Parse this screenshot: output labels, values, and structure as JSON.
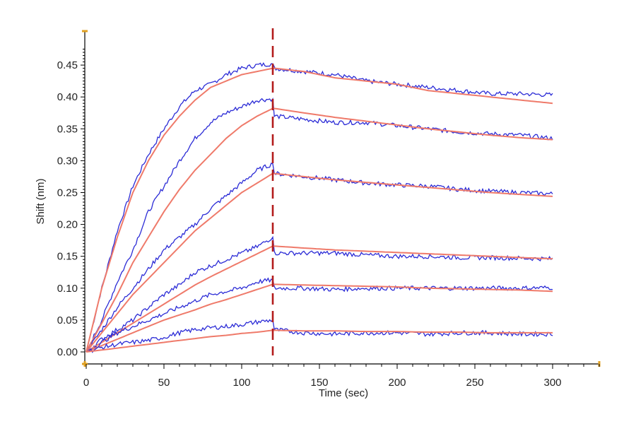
{
  "chart_data": {
    "type": "line",
    "title": "",
    "xlabel": "Time (sec)",
    "ylabel": "Shift (nm)",
    "xlim": [
      0,
      330
    ],
    "ylim": [
      0.0,
      0.48
    ],
    "x_ticks": [
      0,
      50,
      100,
      150,
      200,
      250,
      300
    ],
    "y_ticks": [
      0.0,
      0.05,
      0.1,
      0.15,
      0.2,
      0.25,
      0.3,
      0.35,
      0.4,
      0.45
    ],
    "dissociation_start": 120,
    "grid": false,
    "legend": "none",
    "colors": {
      "measured": "#2b2bd6",
      "fit": "#ef7a6a",
      "marker": "#b31b1b",
      "axis_end": "#e0a020"
    },
    "series": [
      {
        "x": [
          0,
          10,
          20,
          30,
          40,
          50,
          60,
          70,
          80,
          90,
          100,
          110,
          120,
          121,
          140,
          160,
          180,
          200,
          220,
          240,
          260,
          280,
          300
        ],
        "measured": [
          0.0,
          0.1,
          0.19,
          0.26,
          0.31,
          0.35,
          0.385,
          0.41,
          0.42,
          0.435,
          0.445,
          0.45,
          0.452,
          0.445,
          0.44,
          0.435,
          0.425,
          0.42,
          0.415,
          0.41,
          0.405,
          0.405,
          0.403
        ],
        "fit": [
          0.0,
          0.1,
          0.18,
          0.25,
          0.3,
          0.34,
          0.37,
          0.395,
          0.415,
          0.425,
          0.435,
          0.44,
          0.445,
          0.445,
          0.44,
          0.43,
          0.425,
          0.42,
          0.41,
          0.405,
          0.4,
          0.395,
          0.39
        ]
      },
      {
        "x": [
          0,
          10,
          20,
          30,
          40,
          50,
          60,
          70,
          80,
          90,
          100,
          110,
          120,
          121,
          140,
          160,
          180,
          200,
          220,
          240,
          260,
          280,
          300
        ],
        "measured": [
          0.0,
          0.05,
          0.11,
          0.16,
          0.22,
          0.26,
          0.3,
          0.335,
          0.36,
          0.375,
          0.385,
          0.395,
          0.397,
          0.37,
          0.365,
          0.36,
          0.36,
          0.355,
          0.35,
          0.345,
          0.342,
          0.34,
          0.335
        ],
        "fit": [
          0.0,
          0.045,
          0.09,
          0.14,
          0.18,
          0.22,
          0.255,
          0.285,
          0.31,
          0.335,
          0.355,
          0.37,
          0.382,
          0.382,
          0.375,
          0.368,
          0.362,
          0.356,
          0.35,
          0.345,
          0.34,
          0.336,
          0.333
        ]
      },
      {
        "x": [
          0,
          10,
          20,
          30,
          40,
          50,
          60,
          70,
          80,
          90,
          100,
          110,
          120,
          121,
          140,
          160,
          180,
          200,
          220,
          240,
          260,
          280,
          300
        ],
        "measured": [
          0.0,
          0.035,
          0.07,
          0.1,
          0.13,
          0.16,
          0.18,
          0.2,
          0.225,
          0.245,
          0.265,
          0.285,
          0.295,
          0.28,
          0.275,
          0.27,
          0.265,
          0.262,
          0.26,
          0.255,
          0.252,
          0.25,
          0.248
        ],
        "fit": [
          0.0,
          0.03,
          0.06,
          0.09,
          0.115,
          0.14,
          0.165,
          0.19,
          0.21,
          0.23,
          0.25,
          0.265,
          0.28,
          0.28,
          0.275,
          0.27,
          0.266,
          0.262,
          0.258,
          0.254,
          0.25,
          0.247,
          0.244
        ]
      },
      {
        "x": [
          0,
          10,
          20,
          30,
          40,
          50,
          60,
          70,
          80,
          90,
          100,
          110,
          120,
          121,
          140,
          160,
          180,
          200,
          220,
          240,
          260,
          280,
          300
        ],
        "measured": [
          0.0,
          0.02,
          0.035,
          0.05,
          0.07,
          0.09,
          0.105,
          0.125,
          0.135,
          0.145,
          0.155,
          0.165,
          0.18,
          0.155,
          0.155,
          0.155,
          0.152,
          0.15,
          0.15,
          0.148,
          0.148,
          0.147,
          0.146
        ],
        "fit": [
          0.0,
          0.015,
          0.03,
          0.045,
          0.06,
          0.075,
          0.09,
          0.105,
          0.118,
          0.13,
          0.142,
          0.154,
          0.166,
          0.166,
          0.163,
          0.16,
          0.158,
          0.156,
          0.154,
          0.152,
          0.15,
          0.148,
          0.146
        ]
      },
      {
        "x": [
          0,
          10,
          20,
          30,
          40,
          50,
          60,
          70,
          80,
          90,
          100,
          110,
          120,
          121,
          140,
          160,
          180,
          200,
          220,
          240,
          260,
          280,
          300
        ],
        "measured": [
          0.0,
          0.015,
          0.03,
          0.04,
          0.05,
          0.06,
          0.07,
          0.08,
          0.09,
          0.095,
          0.1,
          0.11,
          0.113,
          0.1,
          0.1,
          0.098,
          0.1,
          0.1,
          0.1,
          0.1,
          0.1,
          0.1,
          0.101
        ],
        "fit": [
          0.0,
          0.01,
          0.02,
          0.03,
          0.04,
          0.05,
          0.058,
          0.066,
          0.075,
          0.082,
          0.09,
          0.098,
          0.106,
          0.106,
          0.105,
          0.104,
          0.103,
          0.102,
          0.1,
          0.099,
          0.098,
          0.097,
          0.095
        ]
      },
      {
        "x": [
          0,
          10,
          20,
          30,
          40,
          50,
          60,
          70,
          80,
          90,
          100,
          110,
          120,
          121,
          140,
          160,
          180,
          200,
          220,
          240,
          260,
          280,
          300
        ],
        "measured": [
          0.0,
          0.007,
          0.012,
          0.015,
          0.018,
          0.023,
          0.03,
          0.035,
          0.038,
          0.04,
          0.043,
          0.047,
          0.05,
          0.035,
          0.03,
          0.028,
          0.03,
          0.03,
          0.028,
          0.03,
          0.03,
          0.028,
          0.028
        ],
        "fit": [
          0.0,
          0.003,
          0.006,
          0.009,
          0.012,
          0.015,
          0.018,
          0.021,
          0.024,
          0.026,
          0.029,
          0.031,
          0.034,
          0.034,
          0.033,
          0.033,
          0.032,
          0.032,
          0.031,
          0.031,
          0.03,
          0.03,
          0.03
        ]
      }
    ]
  }
}
